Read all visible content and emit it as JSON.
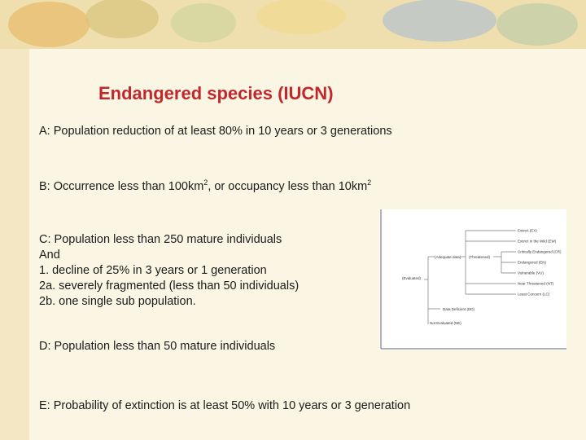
{
  "title": "Endangered species (IUCN)",
  "criteria": {
    "a": "A: Population reduction of at least 80% in 10 years or 3 generations",
    "b": [
      "B: Occurrence less than 100km",
      "2",
      ", or occupancy less than 10km",
      "2"
    ],
    "c": [
      "C: Population less than 250 mature individuals",
      "And",
      "1. decline of 25% in 3 years or 1 generation",
      "2a. severely fragmented (less than 50 individuals)",
      "2b. one single sub population."
    ],
    "d": "D: Population less than 50 mature individuals",
    "e": "E: Probability of extinction is at least 50% with 10 years or  3 generation"
  },
  "diagram": {
    "root": "(Evaluated)",
    "adequate": "(Adequate data)",
    "threatened": "(Threatened)",
    "leaves": [
      "Extinct (EX)",
      "Extinct in the Wild (EW)",
      "Critically Endangered (CR)",
      "Endangered (EN)",
      "Vulnerable (VU)",
      "Near Threatened (NT)",
      "Least Concern (LC)"
    ],
    "data_deficient": "Data Deficient (DD)",
    "not_evaluated": "Not Evaluated (NE)"
  }
}
